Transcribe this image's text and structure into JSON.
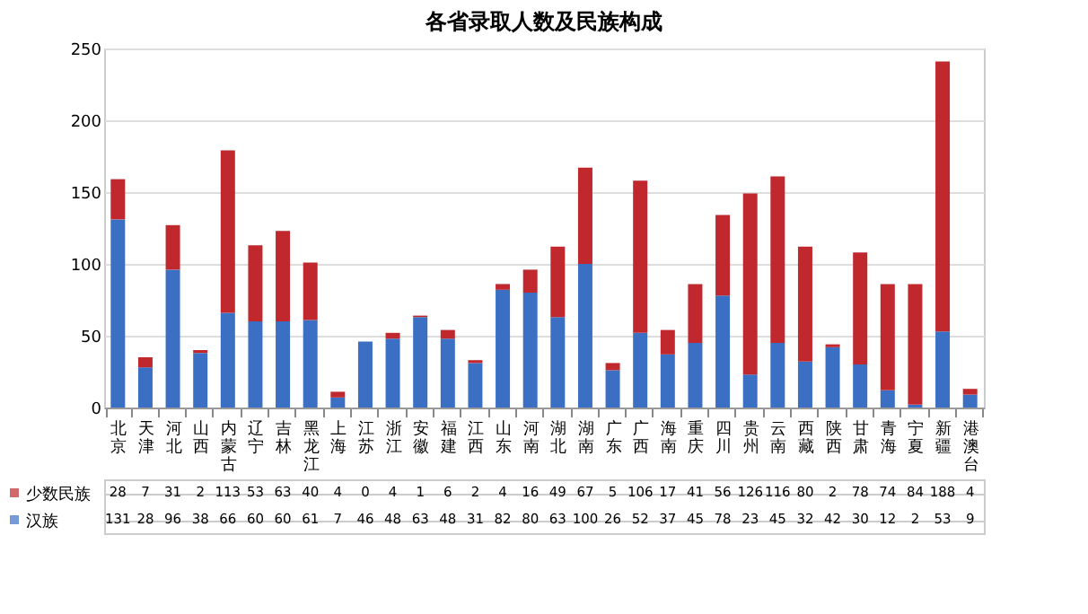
{
  "chart_data": {
    "type": "bar",
    "title": "各省录取人数及民族构成",
    "categories": [
      "北京",
      "天津",
      "河北",
      "山西",
      "内蒙古",
      "辽宁",
      "吉林",
      "黑龙江",
      "上海",
      "江苏",
      "浙江",
      "安徽",
      "福建",
      "江西",
      "山东",
      "河南",
      "湖北",
      "湖南",
      "广东",
      "广西",
      "海南",
      "重庆",
      "四川",
      "贵州",
      "云南",
      "西藏",
      "陕西",
      "甘肃",
      "青海",
      "宁夏",
      "新疆",
      "港澳台"
    ],
    "series": [
      {
        "name": "汉族",
        "color": "#3a6fc4",
        "values": [
          131,
          28,
          96,
          38,
          66,
          60,
          60,
          61,
          7,
          46,
          48,
          63,
          48,
          31,
          82,
          80,
          63,
          100,
          26,
          52,
          37,
          45,
          78,
          23,
          45,
          32,
          42,
          30,
          12,
          2,
          53,
          9
        ]
      },
      {
        "name": "少数民族",
        "color": "#c0282d",
        "values": [
          28,
          7,
          31,
          2,
          113,
          53,
          63,
          40,
          4,
          0,
          4,
          1,
          6,
          2,
          4,
          16,
          49,
          67,
          5,
          106,
          17,
          41,
          56,
          126,
          116,
          80,
          2,
          78,
          74,
          84,
          188,
          4
        ]
      }
    ],
    "stacked": true,
    "ylim": [
      0,
      250
    ],
    "yticks": [
      0,
      50,
      100,
      150,
      200,
      250
    ],
    "grid": "y",
    "data_labels": true,
    "legend": "bottom left"
  }
}
